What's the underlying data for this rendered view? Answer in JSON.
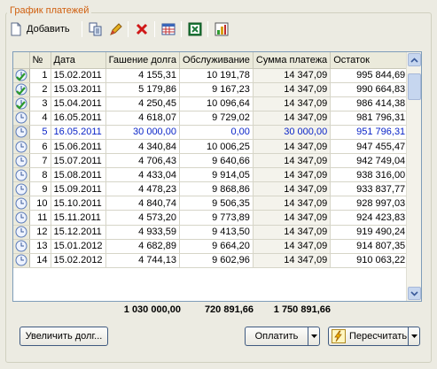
{
  "group_title": "График платежей",
  "toolbar": {
    "add_label": "Добавить",
    "icons": [
      "add-icon",
      "copy-icon",
      "edit-icon",
      "delete-icon",
      "calendar-grid-icon",
      "excel-icon",
      "chart-icon"
    ]
  },
  "colors": {
    "accent_title": "#d06010",
    "active_row_text": "#0b25c8"
  },
  "table": {
    "columns": [
      "",
      "№",
      "Дата",
      "Гашение долга",
      "Обслуживание",
      "Сумма платежа",
      "Остаток"
    ],
    "rows": [
      {
        "status": "paid",
        "n": "1",
        "date": "15.02.2011",
        "principal": "4 155,31",
        "service": "10 191,78",
        "payment": "14 347,09",
        "balance": "995 844,69"
      },
      {
        "status": "paid",
        "n": "2",
        "date": "15.03.2011",
        "principal": "5 179,86",
        "service": "9 167,23",
        "payment": "14 347,09",
        "balance": "990 664,83"
      },
      {
        "status": "paid",
        "n": "3",
        "date": "15.04.2011",
        "principal": "4 250,45",
        "service": "10 096,64",
        "payment": "14 347,09",
        "balance": "986 414,38"
      },
      {
        "status": "pending",
        "n": "4",
        "date": "16.05.2011",
        "principal": "4 618,07",
        "service": "9 729,02",
        "payment": "14 347,09",
        "balance": "981 796,31"
      },
      {
        "status": "pending",
        "n": "5",
        "date": "16.05.2011",
        "principal": "30 000,00",
        "service": "0,00",
        "payment": "30 000,00",
        "balance": "951 796,31",
        "active": true
      },
      {
        "status": "pending",
        "n": "6",
        "date": "15.06.2011",
        "principal": "4 340,84",
        "service": "10 006,25",
        "payment": "14 347,09",
        "balance": "947 455,47"
      },
      {
        "status": "pending",
        "n": "7",
        "date": "15.07.2011",
        "principal": "4 706,43",
        "service": "9 640,66",
        "payment": "14 347,09",
        "balance": "942 749,04"
      },
      {
        "status": "pending",
        "n": "8",
        "date": "15.08.2011",
        "principal": "4 433,04",
        "service": "9 914,05",
        "payment": "14 347,09",
        "balance": "938 316,00"
      },
      {
        "status": "pending",
        "n": "9",
        "date": "15.09.2011",
        "principal": "4 478,23",
        "service": "9 868,86",
        "payment": "14 347,09",
        "balance": "933 837,77"
      },
      {
        "status": "pending",
        "n": "10",
        "date": "15.10.2011",
        "principal": "4 840,74",
        "service": "9 506,35",
        "payment": "14 347,09",
        "balance": "928 997,03"
      },
      {
        "status": "pending",
        "n": "11",
        "date": "15.11.2011",
        "principal": "4 573,20",
        "service": "9 773,89",
        "payment": "14 347,09",
        "balance": "924 423,83"
      },
      {
        "status": "pending",
        "n": "12",
        "date": "15.12.2011",
        "principal": "4 933,59",
        "service": "9 413,50",
        "payment": "14 347,09",
        "balance": "919 490,24"
      },
      {
        "status": "pending",
        "n": "13",
        "date": "15.01.2012",
        "principal": "4 682,89",
        "service": "9 664,20",
        "payment": "14 347,09",
        "balance": "914 807,35"
      },
      {
        "status": "pending",
        "n": "14",
        "date": "15.02.2012",
        "principal": "4 744,13",
        "service": "9 602,96",
        "payment": "14 347,09",
        "balance": "910 063,22"
      }
    ]
  },
  "totals": {
    "principal": "1 030 000,00",
    "service": "720 891,66",
    "payment": "1 750 891,66"
  },
  "buttons": {
    "increase_debt": "Увеличить долг...",
    "pay": "Оплатить",
    "recalc": "Пересчитать"
  }
}
